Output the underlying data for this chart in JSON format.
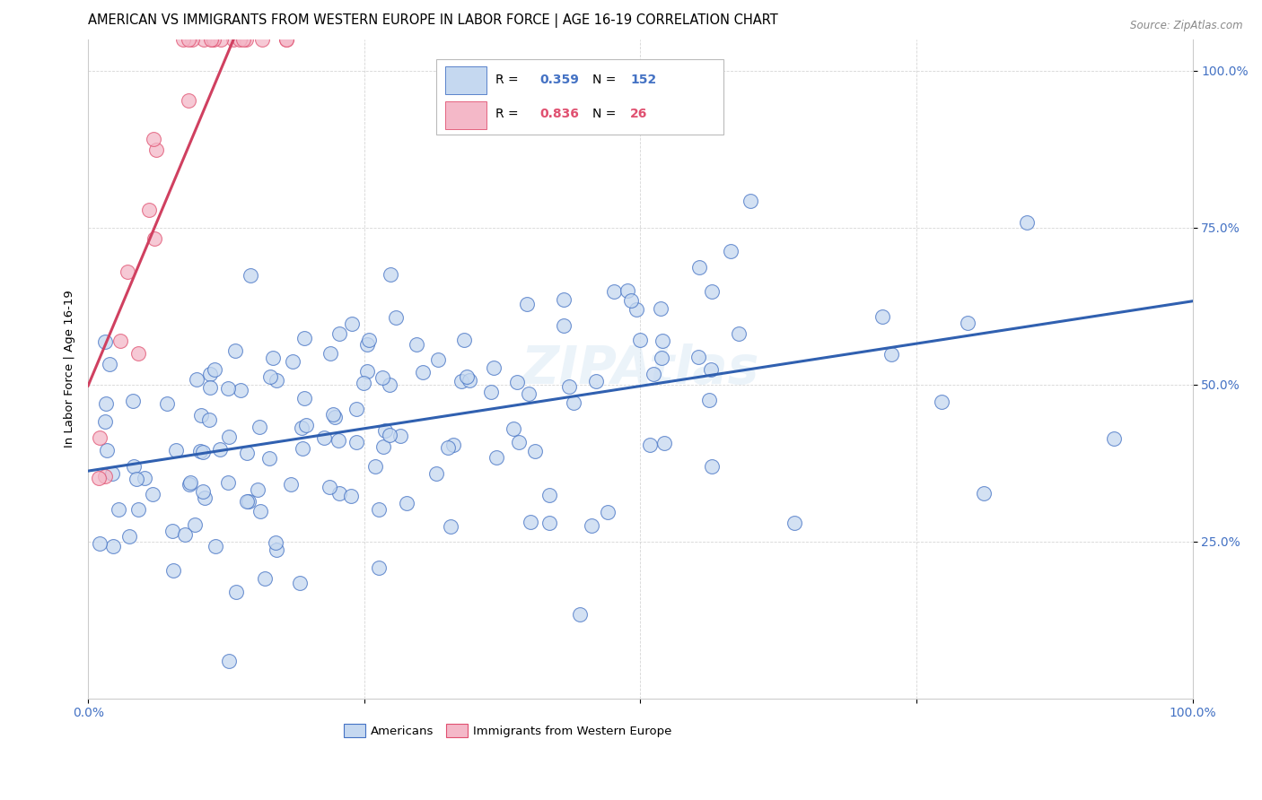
{
  "title": "AMERICAN VS IMMIGRANTS FROM WESTERN EUROPE IN LABOR FORCE | AGE 16-19 CORRELATION CHART",
  "source": "Source: ZipAtlas.com",
  "ylabel": "In Labor Force | Age 16-19",
  "legend_americans": "Americans",
  "legend_immigrants": "Immigrants from Western Europe",
  "r_americans": "0.359",
  "n_americans": "152",
  "r_immigrants": "0.836",
  "n_immigrants": "26",
  "blue_fill": "#c5d8f0",
  "blue_edge": "#4472c4",
  "pink_fill": "#f4b8c8",
  "pink_edge": "#e05070",
  "blue_line": "#3060b0",
  "pink_line": "#d04060",
  "tick_color": "#4472c4",
  "watermark": "ZIPAtlas",
  "seed_am": 7,
  "seed_im": 3
}
